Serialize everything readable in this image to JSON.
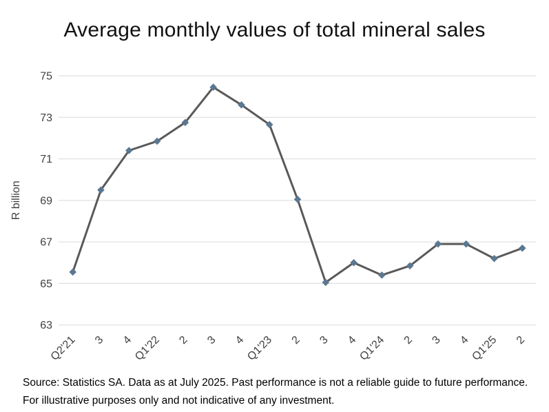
{
  "title": "Average monthly values of total mineral sales",
  "chart_data": {
    "type": "line",
    "title": "Average monthly values of total mineral sales",
    "categories": [
      "Q2'21",
      "3",
      "4",
      "Q1'22",
      "2",
      "3",
      "4",
      "Q1'23",
      "2",
      "3",
      "4",
      "Q1'24",
      "2",
      "3",
      "4",
      "Q1'25",
      "2"
    ],
    "values": [
      65.55,
      69.5,
      71.4,
      71.85,
      72.75,
      74.45,
      73.6,
      72.65,
      69.05,
      65.05,
      66.0,
      65.4,
      65.85,
      66.9,
      66.9,
      66.2,
      66.7
    ],
    "xlabel": "",
    "ylabel": "R billion",
    "ylim": [
      63,
      75
    ],
    "yticks": [
      63,
      65,
      67,
      69,
      71,
      73,
      75
    ],
    "grid": true,
    "legend": "none",
    "line_color": "#595959",
    "marker": "diamond",
    "marker_color": "#5b7891",
    "grid_color": "#d9d9d9"
  },
  "footer": {
    "source_text": "Source: Statistics SA. Data as at July 2025. Past performance is not a reliable guide to future performance. For illustrative purposes only and not indicative of any investment."
  }
}
